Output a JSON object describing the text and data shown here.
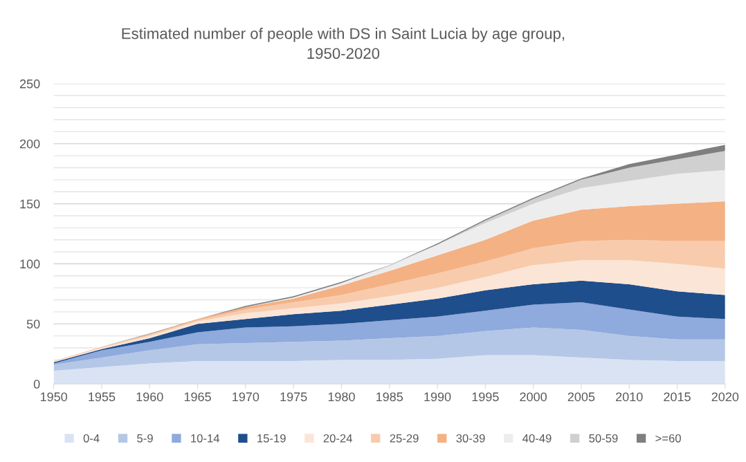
{
  "chart_data": {
    "type": "area",
    "stacked": true,
    "title": "Estimated number of people with DS in Saint Lucia by age group,\n1950-2020",
    "x": [
      1950,
      1955,
      1960,
      1965,
      1970,
      1975,
      1980,
      1985,
      1990,
      1995,
      2000,
      2005,
      2010,
      2015,
      2020
    ],
    "series": [
      {
        "name": "0-4",
        "color": "#dae3f3",
        "values": [
          11,
          14,
          17,
          19,
          19,
          19,
          20,
          20,
          21,
          24,
          24,
          22,
          20,
          19,
          19
        ]
      },
      {
        "name": "5-9",
        "color": "#b4c7e7",
        "values": [
          5,
          8,
          11,
          14,
          15,
          16,
          16,
          18,
          19,
          20,
          23,
          23,
          20,
          18,
          18
        ]
      },
      {
        "name": "10-14",
        "color": "#8faadc",
        "values": [
          1,
          6,
          7,
          10,
          13,
          13,
          14,
          15,
          16,
          17,
          19,
          23,
          22,
          19,
          17
        ]
      },
      {
        "name": "15-19",
        "color": "#1f4e8c",
        "values": [
          1,
          1,
          3,
          7,
          7,
          10,
          11,
          13,
          15,
          17,
          17,
          18,
          21,
          21,
          20
        ]
      },
      {
        "name": "20-24",
        "color": "#fbe5d6",
        "values": [
          0.5,
          1,
          2,
          2,
          5,
          5,
          6,
          7,
          9,
          11,
          16,
          17,
          20,
          23,
          22
        ]
      },
      {
        "name": "25-29",
        "color": "#f8cbad",
        "values": [
          0.5,
          1,
          1,
          1,
          3,
          5,
          7,
          10,
          12,
          13,
          14,
          16,
          17,
          19,
          23
        ]
      },
      {
        "name": "30-39",
        "color": "#f4b183",
        "values": [
          0,
          0,
          0.5,
          1,
          2,
          3,
          8,
          11,
          15,
          18,
          23,
          26,
          28,
          31,
          33
        ]
      },
      {
        "name": "40-49",
        "color": "#ededed",
        "values": [
          0,
          0,
          0,
          0,
          0,
          1,
          2,
          4,
          9,
          14,
          14,
          18,
          21,
          25,
          26
        ]
      },
      {
        "name": "50-59",
        "color": "#d0d0d0",
        "values": [
          0,
          0,
          0,
          0,
          0,
          0,
          0,
          1,
          0,
          2,
          4,
          7,
          11,
          12,
          16
        ]
      },
      {
        "name": ">=60",
        "color": "#7f7f7f",
        "values": [
          0,
          0,
          0.5,
          0,
          1,
          1,
          1,
          0,
          1,
          1,
          1,
          1,
          3,
          4,
          5
        ]
      }
    ],
    "xlim": [
      1950,
      2020
    ],
    "xticks": [
      1950,
      1955,
      1960,
      1965,
      1970,
      1975,
      1980,
      1985,
      1990,
      1995,
      2000,
      2005,
      2010,
      2015,
      2020
    ],
    "ylim": [
      0,
      250
    ],
    "yticks": [
      0,
      {
        "value": 10,
        "label": null
      },
      {
        "value": 20,
        "label": null
      },
      {
        "value": 30,
        "label": null
      },
      {
        "value": 40,
        "label": null
      },
      50,
      {
        "value": 60,
        "label": null
      },
      {
        "value": 70,
        "label": null
      },
      {
        "value": 80,
        "label": null
      },
      {
        "value": 90,
        "label": null
      },
      100,
      {
        "value": 110,
        "label": null
      },
      {
        "value": 120,
        "label": null
      },
      {
        "value": 130,
        "label": null
      },
      {
        "value": 140,
        "label": null
      },
      150,
      {
        "value": 160,
        "label": null
      },
      {
        "value": 170,
        "label": null
      },
      {
        "value": 180,
        "label": null
      },
      {
        "value": 190,
        "label": null
      },
      200,
      {
        "value": 210,
        "label": null
      },
      {
        "value": 220,
        "label": null
      },
      {
        "value": 230,
        "label": null
      },
      {
        "value": 240,
        "label": null
      },
      250
    ],
    "grid": "y",
    "legend": "bottom"
  }
}
